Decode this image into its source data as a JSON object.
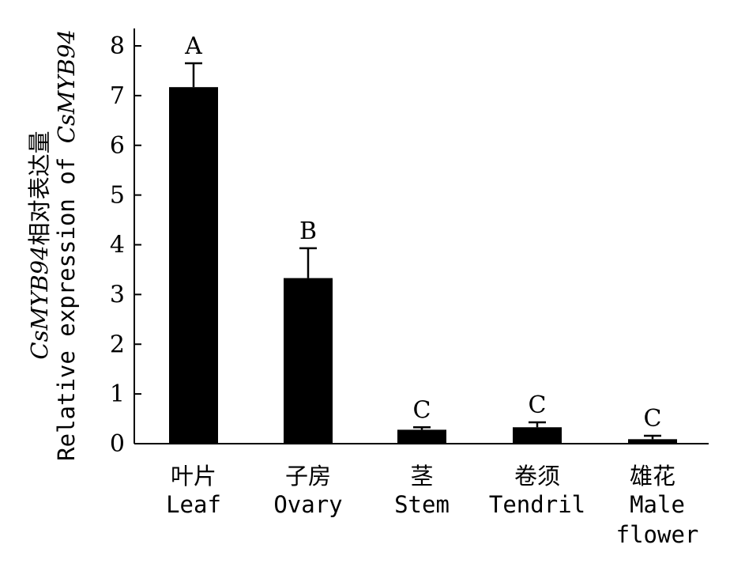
{
  "chart_data": {
    "type": "bar",
    "categories_cn": [
      "叶片",
      "子房",
      "茎",
      "卷须",
      "雄花"
    ],
    "categories_en": [
      "Leaf",
      "Ovary",
      "Stem",
      "Tendril",
      "Male flower"
    ],
    "values": [
      7.17,
      3.33,
      0.28,
      0.33,
      0.09
    ],
    "errors": [
      0.48,
      0.6,
      0.05,
      0.1,
      0.07
    ],
    "significance": [
      "A",
      "B",
      "C",
      "C",
      "C"
    ],
    "ylabel_gene": "CsMYB94",
    "ylabel_cn": "相对表达量",
    "ylabel_en": "Relative expression of ",
    "ylabel_gene_en": "CsMYB94",
    "ylim": [
      0,
      8
    ],
    "yticks": [
      0,
      1,
      2,
      3,
      4,
      5,
      6,
      7,
      8
    ],
    "bar_color": "#000000",
    "grid": false,
    "legend": "none"
  }
}
